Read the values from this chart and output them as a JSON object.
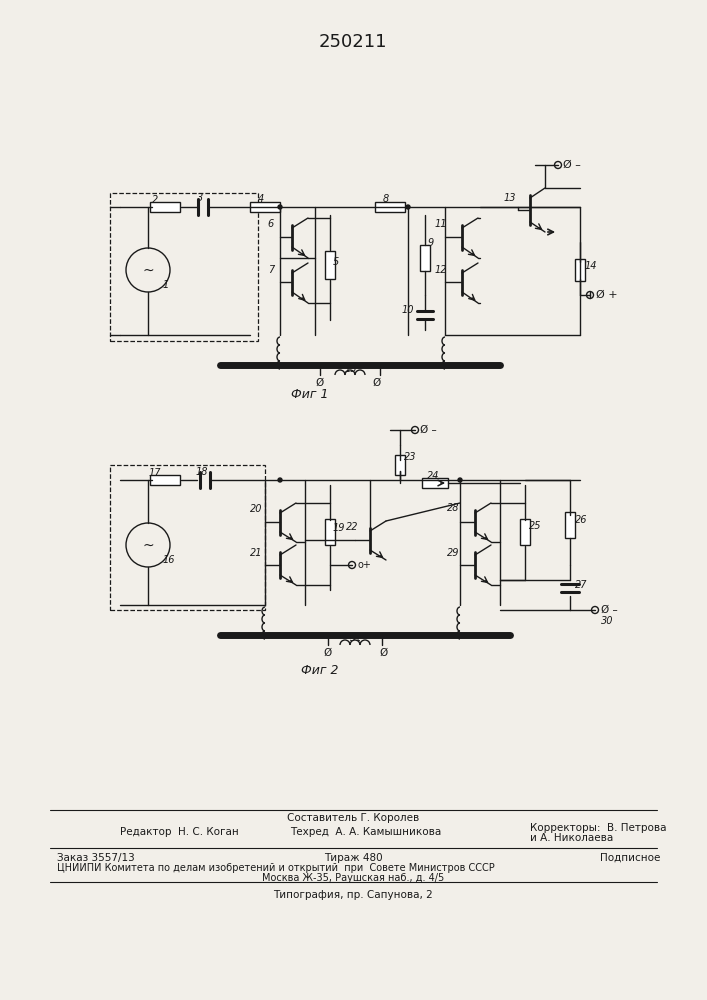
{
  "title": "250211",
  "fig1_label": "Фиг 1",
  "fig2_label": "Фиг 2",
  "background_color": "#f2efe9",
  "line_color": "#1a1a1a",
  "footer_line0_center": "Составитель Г. Королев",
  "footer_line1_left": "Редактор  Н. С. Коган",
  "footer_line1_center": "Техред  А. А. Камышникова",
  "footer_line1_right": "Корректоры:  В. Петрова",
  "footer_line1_right2": "и А. Николаева",
  "footer_line2_left": "Заказ 3557/13",
  "footer_line2_center": "Тираж 480",
  "footer_line2_right": "Подписное",
  "footer_line3": "ЦНИИПИ Комитета по делам изобретений и открытий  при  Совете Министров СССР",
  "footer_line4": "Москва Ж-35, Раушская наб., д. 4/5",
  "footer_line5": "Типография, пр. Сапунова, 2"
}
